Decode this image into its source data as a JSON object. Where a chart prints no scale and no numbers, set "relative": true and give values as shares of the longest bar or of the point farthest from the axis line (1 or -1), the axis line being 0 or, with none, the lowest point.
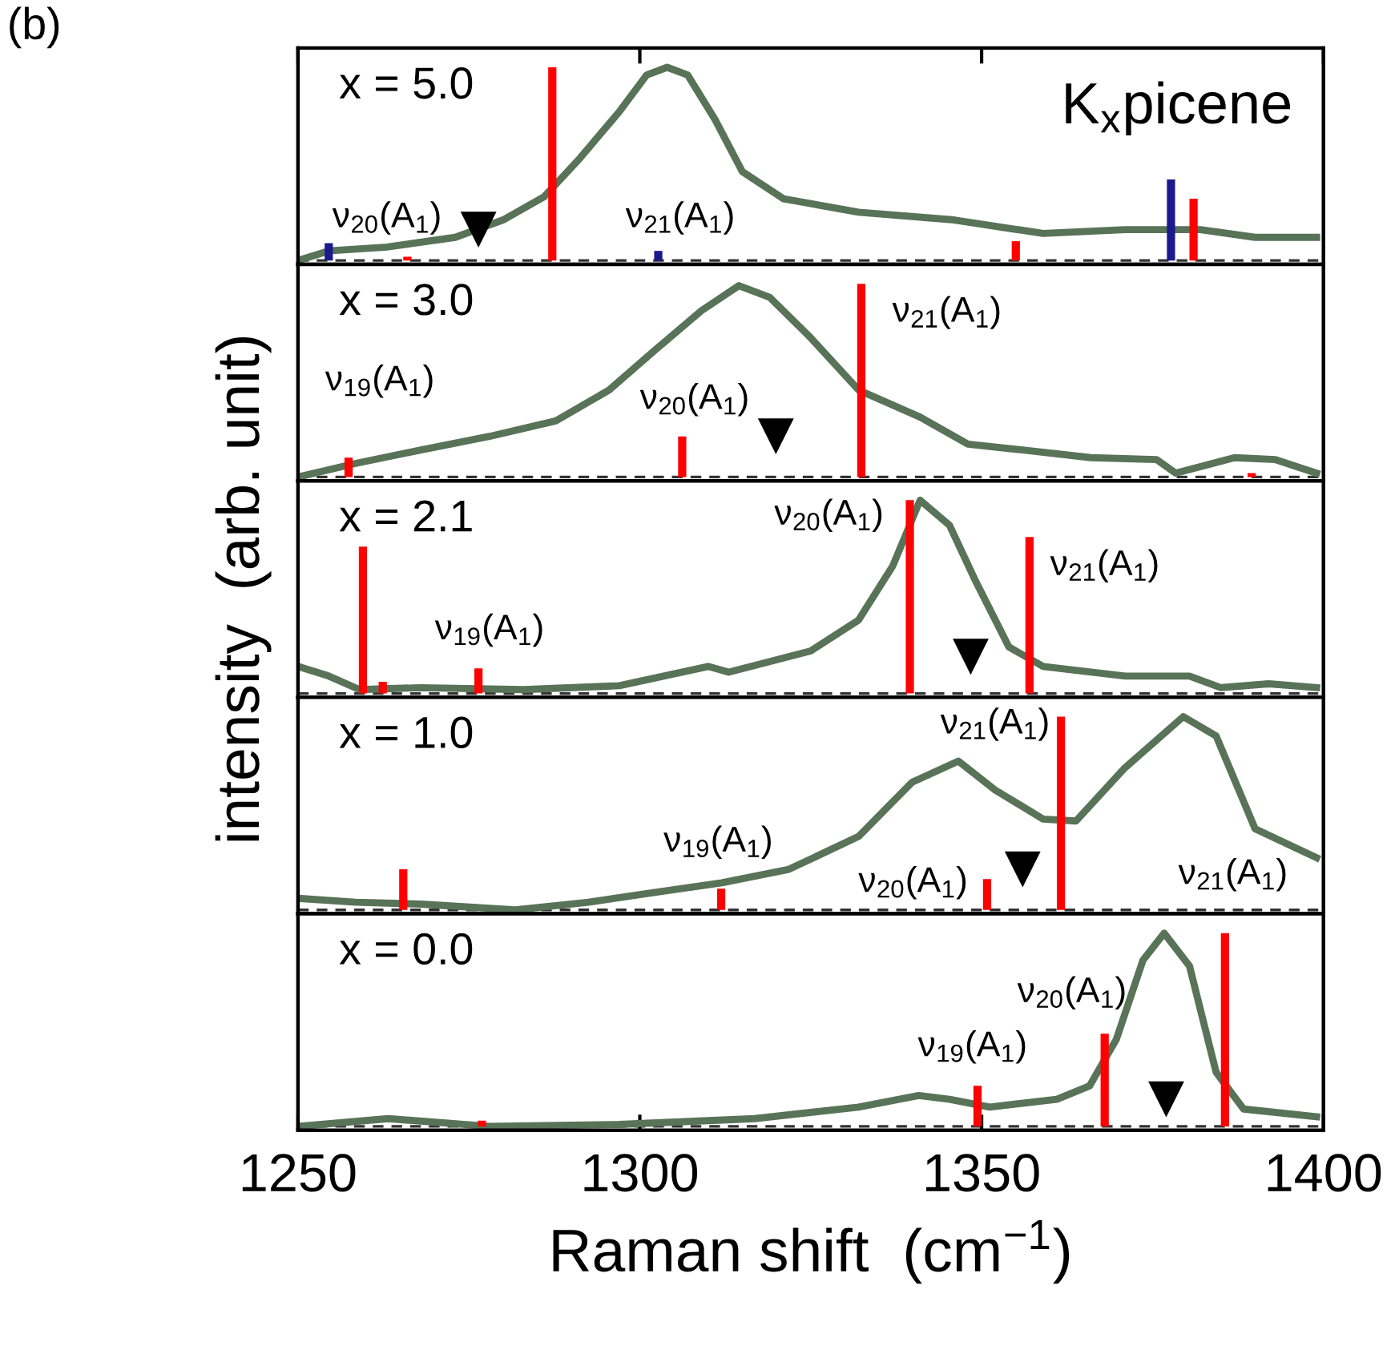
{
  "chart_data": [
    {
      "type": "line",
      "relative": true,
      "xlim": [
        1250,
        1400
      ],
      "xticks": [
        1250,
        1300,
        1350,
        1400
      ],
      "tick_labels": false,
      "grid": false,
      "annotations": [
        "x = 5.0",
        "K$_{x}$picene",
        "(b)",
        "ν$_{20}$(A$_{1}$)",
        "ν$_{21}$(A$_{1}$)"
      ],
      "ref_lines": [
        {
          "axis": "y",
          "value": 0,
          "color": "#333333",
          "line_style": "dashed"
        }
      ],
      "series": [
        {
          "color": "#587358",
          "x": [
            1250,
            1254.5,
            1263,
            1273,
            1280,
            1286,
            1291,
            1297,
            1301,
            1304,
            1307,
            1311,
            1315,
            1321,
            1332,
            1346,
            1359,
            1371,
            1377.5,
            1382,
            1390,
            1399
          ],
          "values": [
            0,
            0.05,
            0.07,
            0.12,
            0.21,
            0.33,
            0.52,
            0.77,
            0.96,
            1.0,
            0.96,
            0.73,
            0.46,
            0.32,
            0.25,
            0.21,
            0.14,
            0.16,
            0.16,
            0.16,
            0.12,
            0.12
          ]
        },
        {
          "type": "bar",
          "color": "#ff0000",
          "x": [
            1266,
            1287.2,
            1355,
            1381
          ],
          "values": [
            0.02,
            1.0,
            0.1,
            0.32
          ]
        },
        {
          "type": "bar",
          "color": "#1a1a8c",
          "x": [
            1254.5,
            1302.7,
            1377.7
          ],
          "values": [
            0.09,
            0.05,
            0.42
          ]
        },
        {
          "type": "scatter",
          "color": "#000000",
          "marker": "triangle",
          "x": [
            1276.4
          ],
          "values": [
            0.16
          ]
        }
      ]
    },
    {
      "type": "line",
      "relative": true,
      "xlim": [
        1250,
        1400
      ],
      "xticks": [
        1250,
        1300,
        1350,
        1400
      ],
      "tick_labels": false,
      "grid": false,
      "annotations": [
        "x = 3.0",
        "ν$_{19}$(A$_{1}$)",
        "ν$_{20}$(A$_{1}$)",
        "ν$_{21}$(A$_{1}$)"
      ],
      "ref_lines": [
        {
          "axis": "y",
          "value": 0,
          "color": "#333333",
          "line_style": "dashed"
        }
      ],
      "series": [
        {
          "color": "#587358",
          "x": [
            1250,
            1258.4,
            1268,
            1278,
            1287.7,
            1295.5,
            1302,
            1309,
            1314.5,
            1319,
            1325,
            1332,
            1341,
            1348,
            1356,
            1366,
            1375.6,
            1378.4,
            1387,
            1393,
            1399
          ],
          "values": [
            0,
            0.07,
            0.14,
            0.21,
            0.29,
            0.45,
            0.65,
            0.86,
            0.99,
            0.93,
            0.72,
            0.45,
            0.31,
            0.17,
            0.14,
            0.1,
            0.09,
            0.02,
            0.1,
            0.09,
            0.02
          ]
        },
        {
          "type": "bar",
          "color": "#ff0000",
          "x": [
            1257.4,
            1306.2,
            1332.4,
            1389.5
          ],
          "values": [
            0.1,
            0.21,
            1.0,
            0.02
          ]
        },
        {
          "type": "scatter",
          "color": "#000000",
          "marker": "triangle",
          "x": [
            1319.9
          ],
          "values": [
            0.21
          ]
        }
      ]
    },
    {
      "type": "line",
      "relative": true,
      "xlim": [
        1250,
        1400
      ],
      "xticks": [
        1250,
        1300,
        1350,
        1400
      ],
      "tick_labels": false,
      "grid": false,
      "ylabel": "intensity  (arb. unit)",
      "annotations": [
        "x = 2.1",
        "ν$_{20}$(A$_{1}$)",
        "ν$_{21}$(A$_{1}$)",
        "ν$_{19}$(A$_{1}$)"
      ],
      "ref_lines": [
        {
          "axis": "y",
          "value": 0,
          "color": "#333333",
          "line_style": "dashed"
        }
      ],
      "series": [
        {
          "color": "#587358",
          "x": [
            1250,
            1254.5,
            1259,
            1268,
            1283,
            1297,
            1310,
            1313,
            1325,
            1332,
            1337,
            1341,
            1345.3,
            1349,
            1354,
            1359,
            1371,
            1380.4,
            1385,
            1392,
            1399
          ],
          "values": [
            0.14,
            0.09,
            0.02,
            0.03,
            0.02,
            0.04,
            0.14,
            0.11,
            0.22,
            0.38,
            0.66,
            1.0,
            0.87,
            0.59,
            0.24,
            0.14,
            0.09,
            0.09,
            0.03,
            0.05,
            0.03
          ]
        },
        {
          "type": "bar",
          "color": "#ff0000",
          "x": [
            1259.5,
            1262.4,
            1276.4,
            1339.5,
            1357
          ],
          "values": [
            0.76,
            0.06,
            0.13,
            1.0,
            0.81
          ]
        },
        {
          "type": "scatter",
          "color": "#000000",
          "marker": "triangle",
          "x": [
            1348.4
          ],
          "values": [
            0.19
          ]
        }
      ]
    },
    {
      "type": "line",
      "relative": true,
      "xlim": [
        1250,
        1400
      ],
      "xticks": [
        1250,
        1300,
        1350,
        1400
      ],
      "tick_labels": false,
      "grid": false,
      "annotations": [
        "x = 1.0",
        "ν$_{19}$(A$_{1}$)",
        "ν$_{20}$(A$_{1}$)",
        "ν$_{21}$(A$_{1}$)",
        "ν$_{21}$(A$_{1}$)"
      ],
      "ref_lines": [
        {
          "axis": "y",
          "value": 0,
          "color": "#333333",
          "line_style": "dashed"
        }
      ],
      "series": [
        {
          "color": "#587358",
          "x": [
            1250,
            1258.4,
            1268,
            1281.8,
            1292.5,
            1302,
            1312,
            1321.8,
            1332,
            1339.8,
            1346.6,
            1352,
            1359,
            1363.8,
            1370.8,
            1379.5,
            1384.3,
            1390,
            1399
          ],
          "values": [
            0.06,
            0.04,
            0.03,
            0,
            0.04,
            0.09,
            0.14,
            0.21,
            0.38,
            0.66,
            0.77,
            0.62,
            0.47,
            0.46,
            0.73,
            1.0,
            0.9,
            0.42,
            0.27
          ]
        },
        {
          "type": "bar",
          "color": "#ff0000",
          "x": [
            1265.4,
            1311.9,
            1350.8,
            1361.6
          ],
          "values": [
            0.21,
            0.11,
            0.16,
            1.0
          ]
        },
        {
          "type": "scatter",
          "color": "#000000",
          "marker": "triangle",
          "x": [
            1356
          ],
          "values": [
            0.21
          ]
        }
      ]
    },
    {
      "type": "line",
      "relative": true,
      "xlim": [
        1250,
        1400
      ],
      "xticks": [
        1250,
        1300,
        1350,
        1400
      ],
      "tick_labels": "x",
      "grid": false,
      "xlabel": "Raman shift  (cm$^{−1}$)",
      "annotations": [
        "x = 0.0",
        "ν$_{19}$(A$_{1}$)",
        "ν$_{20}$(A$_{1}$)"
      ],
      "ref_lines": [
        {
          "axis": "y",
          "value": 0,
          "color": "#333333",
          "line_style": "dashed"
        }
      ],
      "series": [
        {
          "color": "#587358",
          "x": [
            1250,
            1263.2,
            1278,
            1297,
            1316.8,
            1332,
            1340.8,
            1345.3,
            1351.2,
            1361,
            1365.8,
            1369.7,
            1373.6,
            1376.7,
            1380.4,
            1384.3,
            1388.3,
            1399
          ],
          "values": [
            0,
            0.04,
            0,
            0.01,
            0.04,
            0.1,
            0.16,
            0.14,
            0.1,
            0.14,
            0.21,
            0.45,
            0.86,
            1.0,
            0.83,
            0.28,
            0.09,
            0.05
          ]
        },
        {
          "type": "bar",
          "color": "#ff0000",
          "x": [
            1276.9,
            1349.4,
            1368,
            1385.6
          ],
          "values": [
            0.03,
            0.21,
            0.48,
            1.0
          ]
        },
        {
          "type": "scatter",
          "color": "#000000",
          "marker": "triangle",
          "x": [
            1377
          ],
          "values": [
            0.14
          ]
        }
      ]
    }
  ]
}
